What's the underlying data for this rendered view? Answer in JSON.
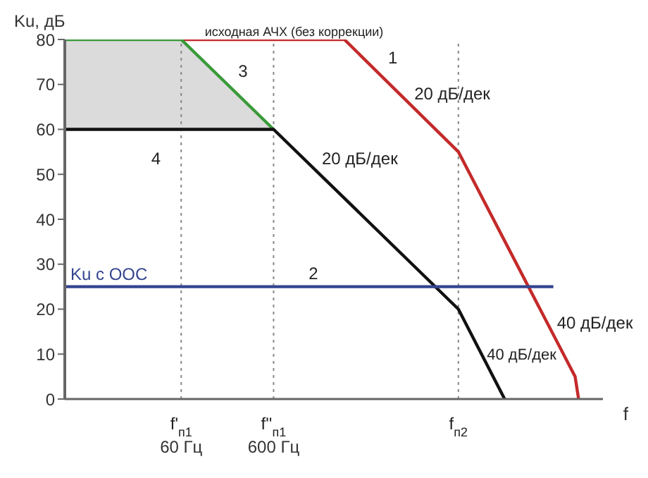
{
  "chart_data": {
    "type": "line",
    "xlabel": "f",
    "ylabel": "Ku, дБ",
    "log": "x",
    "xlim": [
      3.3,
      2200000
    ],
    "xticks": [
      {
        "value": 60,
        "label": "60 Гц"
      },
      {
        "value": 600,
        "label": "600 Гц"
      },
      {
        "value": 60000,
        "label": null
      }
    ],
    "ylim": [
      0,
      80
    ],
    "yticks": [
      0,
      10,
      20,
      30,
      40,
      50,
      60,
      70,
      80
    ],
    "grid": false,
    "legend": false,
    "marker": "none",
    "line_style": "solid",
    "series": [
      {
        "color": "#c42a2a",
        "x": [
          60,
          3500,
          60000,
          1100000,
          1200000
        ],
        "values": [
          80,
          80,
          55,
          5,
          0
        ]
      },
      {
        "color": "#3a9a3a",
        "x": [
          3.3,
          60,
          600
        ],
        "values": [
          80,
          80,
          60
        ],
        "lower": [
          60,
          60,
          60
        ],
        "upper": [
          80,
          80,
          60
        ]
      },
      {
        "color": "#111111",
        "x": [
          3.3,
          600,
          60000,
          190000
        ],
        "values": [
          60,
          60,
          20,
          0
        ]
      },
      {
        "name": "Ku с ООС",
        "color": "#34458f",
        "x": [
          3.3,
          640000
        ],
        "values": [
          25,
          25
        ]
      }
    ],
    "ref_lines": [
      {
        "axis": "x",
        "value": 60,
        "color": "#888888",
        "line_style": "dotted"
      },
      {
        "axis": "x",
        "value": 600,
        "color": "#888888",
        "line_style": "dotted"
      },
      {
        "axis": "x",
        "value": 60000,
        "color": "#888888",
        "line_style": "dotted"
      }
    ],
    "annotations": [
      "исходная АЧХ (без коррекции)",
      "20 дБ/дек",
      "20 дБ/дек",
      "40 дБ/дек",
      "40 дБ/дек",
      "1",
      "2",
      "3",
      "4",
      "f'$_{п1}$",
      "f''$_{п1}$",
      "f$_{п2}$"
    ]
  }
}
